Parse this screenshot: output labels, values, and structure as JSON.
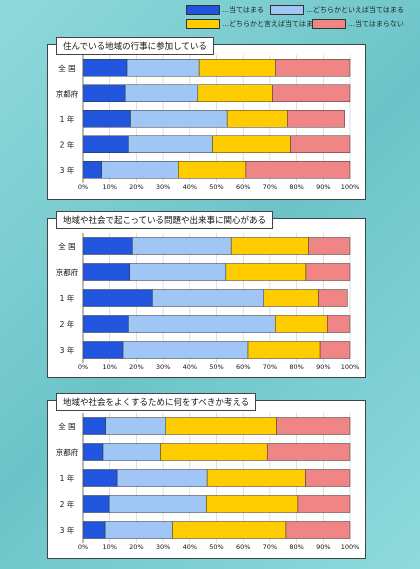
{
  "legend": {
    "items": [
      {
        "label": "…当てはまる",
        "color": "#2255dd"
      },
      {
        "label": "…どちらかといえば当てはまる",
        "color": "#9fc6f5"
      },
      {
        "label": "…どちらかと言えば当てはまらない",
        "color": "#ffcc00"
      },
      {
        "label": "…当てはまらない",
        "color": "#f08585"
      }
    ]
  },
  "chart_data": [
    {
      "type": "bar",
      "orientation": "horizontal",
      "stacked": true,
      "title": "住んでいる地域の行事に参加している",
      "categories": [
        "全 国",
        "京都府",
        "1 年",
        "2 年",
        "3 年"
      ],
      "series": [
        {
          "name": "…当てはまる",
          "values": [
            16.5,
            15.8,
            17.8,
            17.0,
            7.0
          ]
        },
        {
          "name": "…どちらかといえば当てはまる",
          "values": [
            27.0,
            27.2,
            36.2,
            31.5,
            28.7
          ]
        },
        {
          "name": "…どちらかと言えば当てはまらない",
          "values": [
            28.5,
            28.0,
            22.5,
            29.2,
            25.3
          ]
        },
        {
          "name": "…当てはまらない",
          "values": [
            28.0,
            29.0,
            21.5,
            22.3,
            39.0
          ]
        }
      ],
      "xlim": [
        0,
        100
      ],
      "xticks": [
        "0%",
        "10%",
        "20%",
        "30%",
        "40%",
        "50%",
        "60%",
        "70%",
        "80%",
        "90%",
        "100%"
      ]
    },
    {
      "type": "bar",
      "orientation": "horizontal",
      "stacked": true,
      "title": "地域や社会で起こっている問題や出来事に関心がある",
      "categories": [
        "全 国",
        "京都府",
        "1 年",
        "2 年",
        "3 年"
      ],
      "series": [
        {
          "name": "…当てはまる",
          "values": [
            18.5,
            17.5,
            26.0,
            17.0,
            15.0
          ]
        },
        {
          "name": "…どちらかといえば当てはまる",
          "values": [
            37.0,
            36.0,
            41.7,
            55.0,
            46.8
          ]
        },
        {
          "name": "…どちらかと言えば当てはまらない",
          "values": [
            29.0,
            30.0,
            20.5,
            19.5,
            27.0
          ]
        },
        {
          "name": "…当てはまらない",
          "values": [
            15.5,
            16.5,
            10.8,
            8.5,
            11.2
          ]
        }
      ],
      "xlim": [
        0,
        100
      ],
      "xticks": [
        "0%",
        "10%",
        "20%",
        "30%",
        "40%",
        "50%",
        "60%",
        "70%",
        "80%",
        "90%",
        "100%"
      ]
    },
    {
      "type": "bar",
      "orientation": "horizontal",
      "stacked": true,
      "title": "地域や社会をよくするために何をすべきか考える",
      "categories": [
        "全 国",
        "京都府",
        "1 年",
        "2 年",
        "3 年"
      ],
      "series": [
        {
          "name": "…当てはまる",
          "values": [
            8.5,
            7.5,
            12.8,
            9.8,
            8.3
          ]
        },
        {
          "name": "…どちらかといえば当てはまる",
          "values": [
            22.5,
            21.5,
            33.7,
            36.4,
            25.2
          ]
        },
        {
          "name": "…どちらかと言えば当てはまらない",
          "values": [
            41.5,
            40.0,
            36.8,
            34.3,
            42.5
          ]
        },
        {
          "name": "…当てはまらない",
          "values": [
            27.5,
            31.0,
            16.7,
            19.5,
            24.0
          ]
        }
      ],
      "xlim": [
        0,
        100
      ],
      "xticks": [
        "0%",
        "10%",
        "20%",
        "30%",
        "40%",
        "50%",
        "60%",
        "70%",
        "80%",
        "90%",
        "100%"
      ]
    }
  ]
}
